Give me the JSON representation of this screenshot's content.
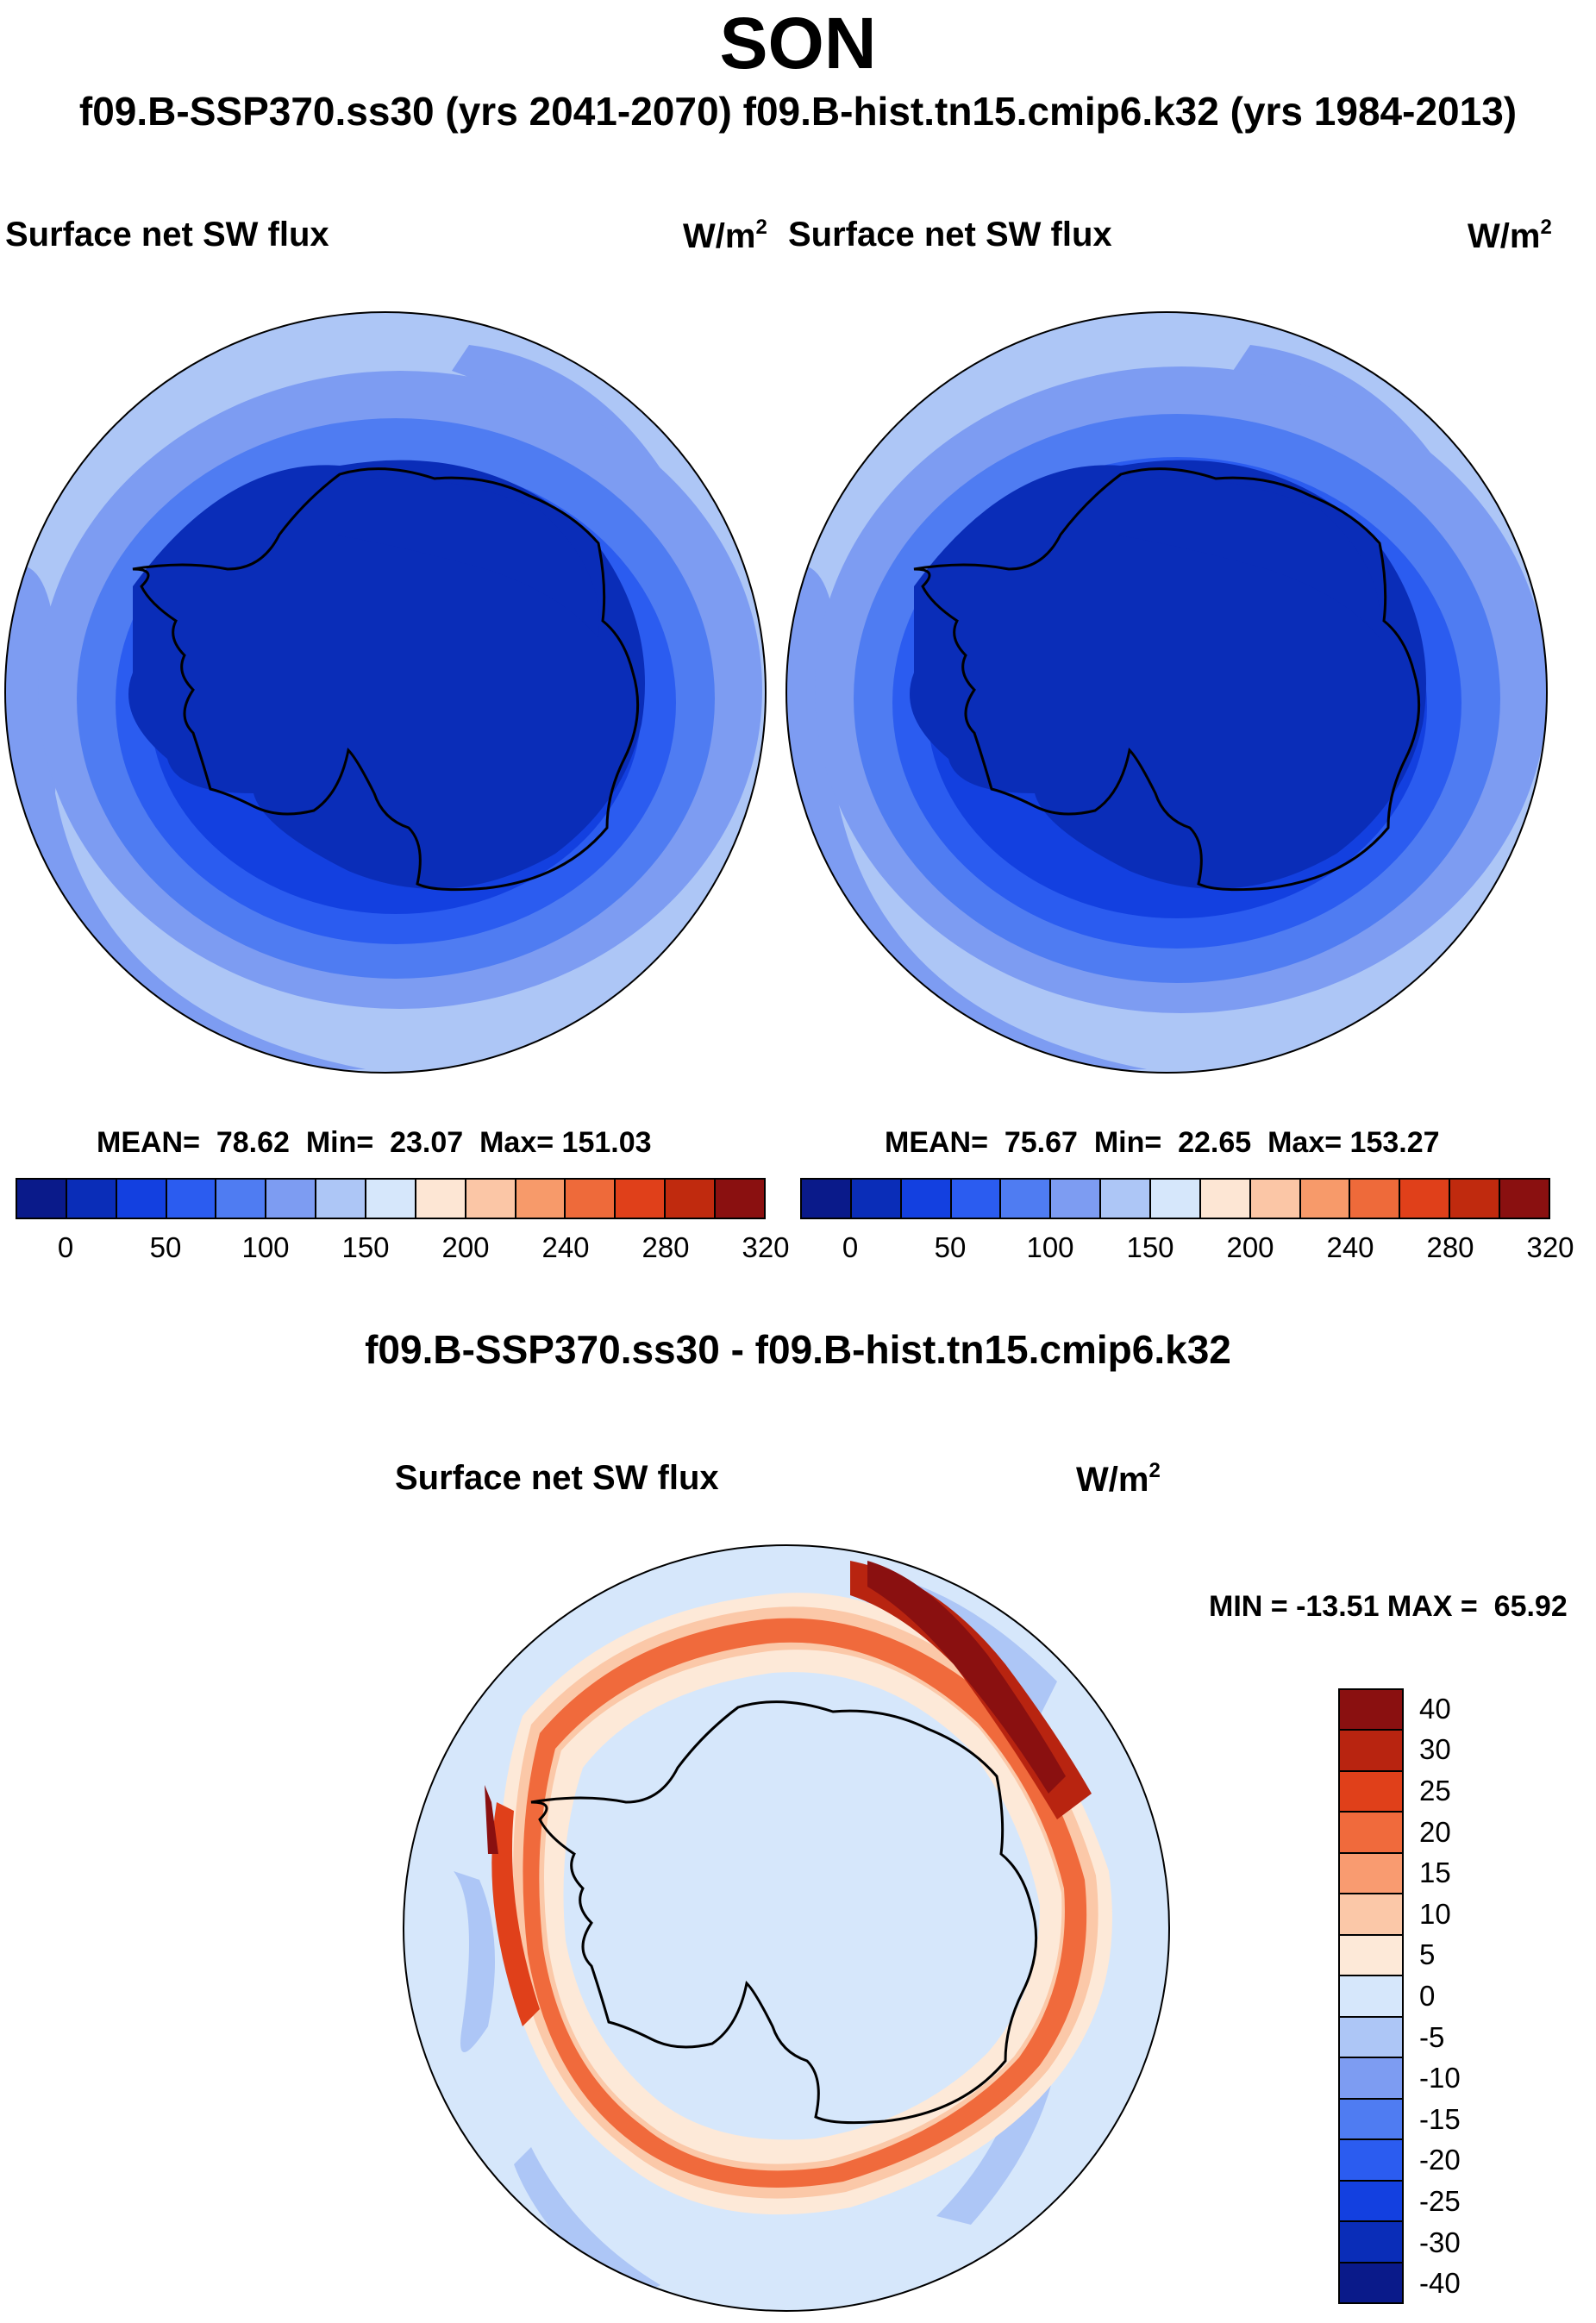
{
  "title": "SON",
  "subtitle": "f09.B-SSP370.ss30 (yrs 2041-2070)  f09.B-hist.tn15.cmip6.k32 (yrs 1984-2013)",
  "panels": {
    "left": {
      "variable": "Surface net SW flux",
      "units": "W/m",
      "units_sup": "2",
      "stats": "MEAN=  78.62  Min=  23.07  Max= 151.03"
    },
    "right": {
      "variable": "Surface net SW flux",
      "units": "W/m",
      "units_sup": "2",
      "stats": "MEAN=  75.67  Min=  22.65  Max= 153.27"
    },
    "diff": {
      "title": "f09.B-SSP370.ss30 - f09.B-hist.tn15.cmip6.k32",
      "variable": "Surface net SW flux",
      "units": "W/m",
      "units_sup": "2",
      "minmax": "MIN = -13.51 MAX =  65.92"
    }
  },
  "colorbar_abs": {
    "colors": [
      "#0a1a8a",
      "#0a2db8",
      "#1340e0",
      "#2b5cf0",
      "#4f7cf2",
      "#7d9cf2",
      "#adc6f6",
      "#d6e7fb",
      "#fde6d4",
      "#fbc6a6",
      "#f79a6a",
      "#ee6a3a",
      "#e0401a",
      "#c02a0e",
      "#8a1010"
    ],
    "labels": [
      "0",
      "50",
      "100",
      "150",
      "200",
      "240",
      "280",
      "320"
    ]
  },
  "colorbar_diff": {
    "colors": [
      "#8a1010",
      "#b82410",
      "#e0401a",
      "#f06a3c",
      "#f99b70",
      "#fbc8a8",
      "#fde9d8",
      "#d6e7fb",
      "#adc6f6",
      "#7d9cf2",
      "#4f7cf2",
      "#2b5cf0",
      "#1340e0",
      "#0a2db8",
      "#0a1a8a"
    ],
    "labels": [
      "40",
      "30",
      "25",
      "20",
      "15",
      "10",
      "5",
      "0",
      "-5",
      "-10",
      "-15",
      "-20",
      "-25",
      "-30",
      "-40"
    ]
  }
}
